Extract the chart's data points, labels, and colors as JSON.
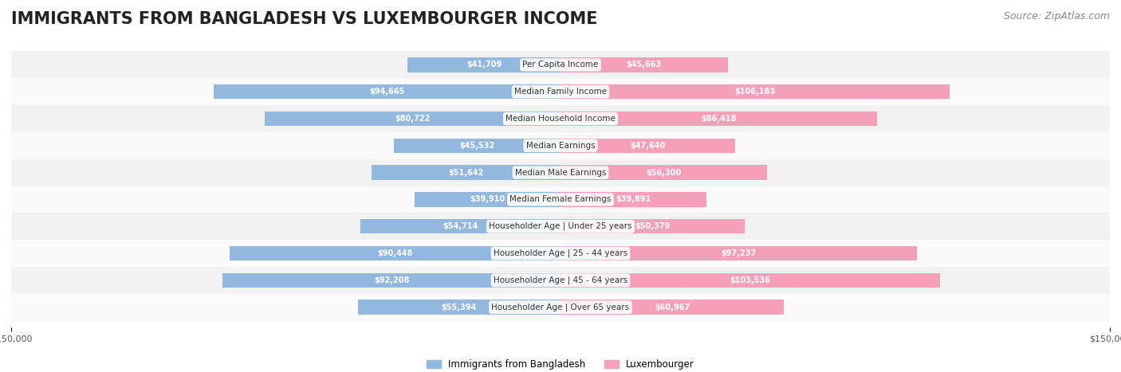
{
  "title": "IMMIGRANTS FROM BANGLADESH VS LUXEMBOURGER INCOME",
  "source": "Source: ZipAtlas.com",
  "categories": [
    "Per Capita Income",
    "Median Family Income",
    "Median Household Income",
    "Median Earnings",
    "Median Male Earnings",
    "Median Female Earnings",
    "Householder Age | Under 25 years",
    "Householder Age | 25 - 44 years",
    "Householder Age | 45 - 64 years",
    "Householder Age | Over 65 years"
  ],
  "left_values": [
    41709,
    94665,
    80722,
    45532,
    51642,
    39910,
    54714,
    90448,
    92208,
    55394
  ],
  "right_values": [
    45663,
    106183,
    86418,
    47640,
    56300,
    39891,
    50379,
    97237,
    103536,
    60967
  ],
  "left_labels": [
    "$41,709",
    "$94,665",
    "$80,722",
    "$45,532",
    "$51,642",
    "$39,910",
    "$54,714",
    "$90,448",
    "$92,208",
    "$55,394"
  ],
  "right_labels": [
    "$45,663",
    "$106,183",
    "$86,418",
    "$47,640",
    "$56,300",
    "$39,891",
    "$50,379",
    "$97,237",
    "$103,536",
    "$60,967"
  ],
  "left_color": "#92b8e0",
  "right_color": "#f4a0b8",
  "left_label_color_inside": "#ffffff",
  "left_label_color_outside": "#555555",
  "right_label_color_inside": "#ffffff",
  "right_label_color_outside": "#555555",
  "max_value": 150000,
  "legend_left": "Immigrants from Bangladesh",
  "legend_right": "Luxembourger",
  "bg_color": "#ffffff",
  "row_bg_color": "#f0f0f0",
  "title_fontsize": 15,
  "source_fontsize": 9,
  "bar_height": 0.55,
  "inside_threshold": 20000
}
